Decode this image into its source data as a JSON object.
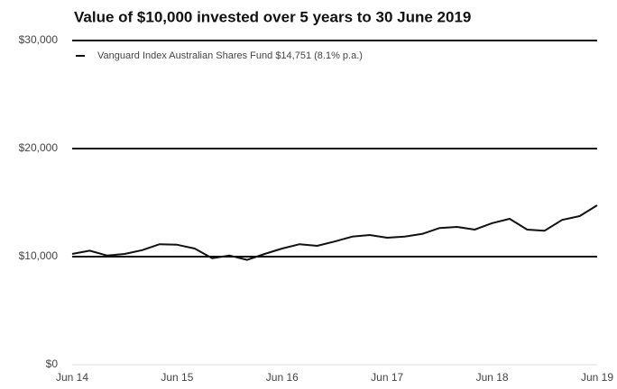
{
  "chart_data": {
    "type": "line",
    "title": "Value of $10,000 invested over 5 years to 30 June 2019",
    "categories": [
      "Jun 14",
      null,
      null,
      null,
      null,
      null,
      "Jun 15",
      null,
      null,
      null,
      null,
      null,
      "Jun 16",
      null,
      null,
      null,
      null,
      null,
      "Jun 17",
      null,
      null,
      null,
      null,
      null,
      "Jun 18",
      null,
      null,
      null,
      null,
      null,
      "Jun 19"
    ],
    "series": [
      {
        "name": "Vanguard Index Australian Shares Fund $14,751 (8.1% p.a.)",
        "color": "#111111",
        "values": [
          10250,
          10550,
          10100,
          10250,
          10600,
          11150,
          11100,
          10750,
          9850,
          10100,
          9700,
          10250,
          10750,
          11150,
          11000,
          11400,
          11850,
          12000,
          11750,
          11850,
          12100,
          12650,
          12750,
          12500,
          13100,
          13500,
          12500,
          12400,
          13400,
          13750,
          14751
        ]
      }
    ],
    "ylim": [
      0,
      30000
    ],
    "yticks": [
      {
        "value": 0,
        "label": "$0"
      },
      {
        "value": 10000,
        "label": "$10,000"
      },
      {
        "value": 20000,
        "label": "$20,000"
      },
      {
        "value": 30000,
        "label": "$30,000"
      }
    ],
    "grid": true,
    "legend": "top-left"
  }
}
